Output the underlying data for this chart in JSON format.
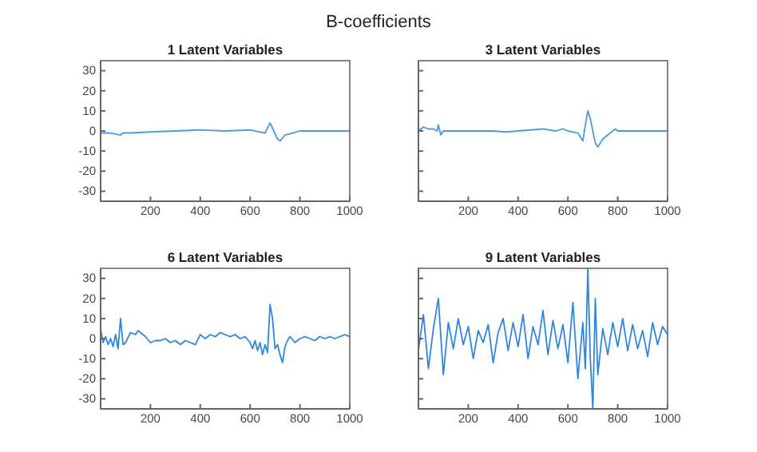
{
  "chart_data": [
    {
      "type": "line",
      "title": "1 Latent Variables",
      "annotations": [
        "B-coefficients"
      ],
      "xlim": [
        0,
        1000
      ],
      "ylim": [
        -35,
        35
      ],
      "xticks": [
        200,
        400,
        600,
        800,
        1000
      ],
      "yticks": [
        -30,
        -20,
        -10,
        0,
        10,
        20,
        30
      ],
      "series": [
        {
          "color": "#4a9be0",
          "x": [
            1,
            40,
            80,
            90,
            120,
            200,
            300,
            400,
            500,
            600,
            640,
            660,
            680,
            695,
            710,
            720,
            740,
            770,
            800,
            850,
            900,
            1000
          ],
          "values": [
            -1,
            -1,
            -2,
            -1,
            -1,
            -0.5,
            0,
            0.5,
            0,
            0.5,
            -0.5,
            -1,
            4,
            0,
            -4,
            -5,
            -2,
            -1,
            0,
            0,
            0,
            0
          ]
        }
      ]
    },
    {
      "type": "line",
      "title": "3 Latent Variables",
      "xlim": [
        0,
        1000
      ],
      "ylim": [
        -35,
        35
      ],
      "xticks": [
        200,
        400,
        600,
        800,
        1000
      ],
      "yticks": [
        -30,
        -20,
        -10,
        0,
        10,
        20,
        30
      ],
      "tick_labels": "x",
      "series": [
        {
          "color": "#4a9be0",
          "x": [
            1,
            20,
            40,
            60,
            75,
            80,
            90,
            100,
            150,
            200,
            300,
            350,
            400,
            450,
            500,
            550,
            580,
            600,
            640,
            660,
            670,
            680,
            690,
            700,
            710,
            720,
            740,
            760,
            780,
            790,
            800,
            850,
            900,
            1000
          ],
          "values": [
            0,
            2,
            1,
            1,
            0,
            3,
            -2,
            0,
            0,
            0,
            0,
            -0.5,
            0,
            0.5,
            1,
            0,
            1,
            0,
            -1,
            -5,
            3,
            10,
            6,
            0,
            -6,
            -8,
            -4,
            -2,
            0,
            1,
            0,
            0,
            0,
            0
          ]
        }
      ]
    },
    {
      "type": "line",
      "title": "6 Latent Variables",
      "xlim": [
        0,
        1000
      ],
      "ylim": [
        -35,
        35
      ],
      "xticks": [
        200,
        400,
        600,
        800,
        1000
      ],
      "yticks": [
        -30,
        -20,
        -10,
        0,
        10,
        20,
        30
      ],
      "series": [
        {
          "color": "#2f86e0",
          "x": [
            1,
            10,
            20,
            30,
            40,
            50,
            60,
            70,
            80,
            90,
            100,
            120,
            140,
            150,
            160,
            180,
            200,
            220,
            240,
            260,
            280,
            300,
            320,
            340,
            360,
            380,
            400,
            420,
            440,
            460,
            480,
            500,
            520,
            540,
            560,
            580,
            600,
            610,
            620,
            630,
            640,
            650,
            660,
            670,
            680,
            690,
            700,
            710,
            720,
            730,
            740,
            750,
            760,
            780,
            800,
            820,
            840,
            860,
            880,
            900,
            920,
            940,
            960,
            980,
            1000
          ],
          "values": [
            4,
            -2,
            1,
            -3,
            0,
            -4,
            2,
            -5,
            10,
            -3,
            -2,
            3,
            2,
            4,
            3,
            1,
            -2,
            -1,
            -1,
            0,
            -2,
            -1,
            -3,
            -1,
            -2,
            -3,
            2,
            0,
            2,
            1,
            3,
            2,
            1,
            2,
            0,
            1,
            -2,
            -5,
            -1,
            -6,
            -2,
            -8,
            -3,
            -7,
            17,
            10,
            -5,
            -3,
            -8,
            -12,
            -4,
            -1,
            1,
            -2,
            0,
            1,
            0,
            -1,
            1,
            0,
            1,
            0,
            1,
            2,
            1
          ]
        }
      ]
    },
    {
      "type": "line",
      "title": "9 Latent Variables",
      "xlim": [
        0,
        1000
      ],
      "ylim": [
        -35,
        35
      ],
      "xticks": [
        200,
        400,
        600,
        800,
        1000
      ],
      "yticks": [
        -30,
        -20,
        -10,
        0,
        10,
        20,
        30
      ],
      "tick_labels": "x",
      "series": [
        {
          "color": "#2f86e0",
          "x": [
            1,
            20,
            40,
            60,
            80,
            100,
            120,
            140,
            160,
            180,
            200,
            220,
            240,
            260,
            280,
            300,
            320,
            340,
            360,
            380,
            400,
            420,
            440,
            460,
            480,
            500,
            520,
            540,
            560,
            580,
            600,
            620,
            640,
            660,
            670,
            680,
            690,
            700,
            710,
            720,
            740,
            760,
            780,
            800,
            820,
            840,
            860,
            880,
            900,
            920,
            940,
            960,
            980,
            1000
          ],
          "values": [
            -5,
            12,
            -15,
            5,
            20,
            -18,
            8,
            -5,
            10,
            -3,
            6,
            -10,
            4,
            -2,
            7,
            -12,
            3,
            10,
            -6,
            8,
            -4,
            12,
            -10,
            6,
            -3,
            14,
            -8,
            9,
            -5,
            7,
            -12,
            18,
            -20,
            8,
            -15,
            35,
            -10,
            -35,
            20,
            -18,
            5,
            -8,
            8,
            -4,
            10,
            -6,
            7,
            -5,
            4,
            -9,
            8,
            -3,
            6,
            2
          ]
        }
      ]
    }
  ]
}
